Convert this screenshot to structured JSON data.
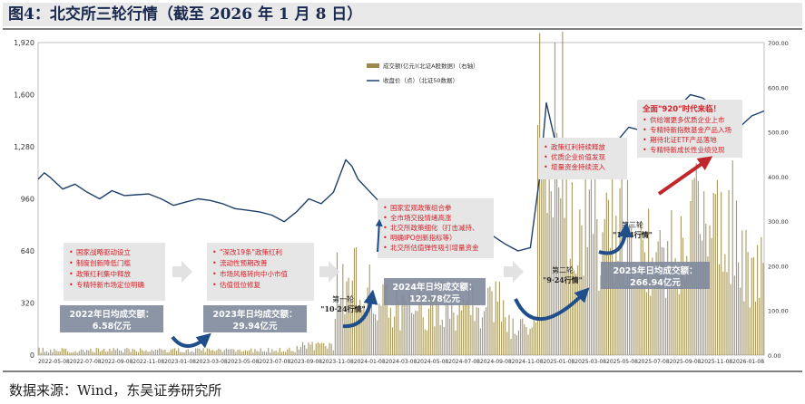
{
  "page": {
    "title": "图4：北交所三轮行情（截至 2026 年 1 月 8 日）",
    "source": "数据来源：Wind，东吴证券研究所"
  },
  "colors": {
    "line": "#1f3f6b",
    "bar": "#9c8a4b",
    "note_bg": "#e6e6e6",
    "note_text": "#d2232a",
    "stat_bg": "#7f8a9c",
    "arrow_blue": "#1f4e8a",
    "arrow_red": "#c0272d"
  },
  "chart_data": {
    "type": "line+bar",
    "legend": [
      "成交额(亿元)(北证A股数据)（右轴）",
      "收盘价（点）（北证50数据）"
    ],
    "legend_position": "top-center",
    "y_left": {
      "min": 0,
      "max": 1920,
      "ticks": [
        "0",
        "320",
        "640",
        "960",
        "1,280",
        "1,600",
        "1,920"
      ]
    },
    "y_right": {
      "min": 0,
      "max": 700,
      "ticks": [
        "0.00",
        "100.00",
        "200.00",
        "300.00",
        "400.00",
        "500.00",
        "600.00",
        "700.00"
      ]
    },
    "x_ticks": [
      "2022-05-08",
      "2022-07-08",
      "2022-09-08",
      "2022-11-08",
      "2023-01-08",
      "2023-03-08",
      "2023-05-08",
      "2023-07-08",
      "2023-09-08",
      "2023-11-08",
      "2024-01-08",
      "2024-03-08",
      "2024-05-08",
      "2024-07-08",
      "2024-09-08",
      "2024-11-08",
      "2025-01-08",
      "2025-03-08",
      "2025-05-08",
      "2025-07-08",
      "2025-09-08",
      "2025-11-08",
      "2026-01-08"
    ],
    "close_price_series": {
      "name": "收盘价（点）（北证50数据）",
      "points": [
        [
          0,
          1080
        ],
        [
          0.5,
          1120
        ],
        [
          1,
          1090
        ],
        [
          2,
          1020
        ],
        [
          3,
          1050
        ],
        [
          4,
          1000
        ],
        [
          5,
          960
        ],
        [
          6,
          1010
        ],
        [
          7,
          980
        ],
        [
          8,
          985
        ],
        [
          9,
          990
        ],
        [
          10,
          960
        ],
        [
          11,
          920
        ],
        [
          12,
          940
        ],
        [
          13,
          960
        ],
        [
          14,
          950
        ],
        [
          15,
          930
        ],
        [
          16,
          900
        ],
        [
          17,
          890
        ],
        [
          18,
          880
        ],
        [
          19,
          860
        ],
        [
          20,
          820
        ],
        [
          21,
          880
        ],
        [
          22,
          960
        ],
        [
          23,
          930
        ],
        [
          24,
          1000
        ],
        [
          25,
          1200
        ],
        [
          25.5,
          1160
        ],
        [
          26,
          1080
        ],
        [
          27,
          1000
        ],
        [
          28,
          920
        ],
        [
          29,
          840
        ],
        [
          30,
          790
        ],
        [
          31,
          840
        ],
        [
          32,
          820
        ],
        [
          33,
          780
        ],
        [
          34,
          740
        ],
        [
          35,
          700
        ],
        [
          36,
          710
        ],
        [
          37,
          730
        ],
        [
          38,
          680
        ],
        [
          39,
          640
        ],
        [
          40,
          660
        ],
        [
          40.8,
          1120
        ],
        [
          41.3,
          1550
        ],
        [
          42,
          1320
        ],
        [
          43,
          1300
        ],
        [
          44,
          1200
        ],
        [
          45,
          1230
        ],
        [
          46,
          1180
        ],
        [
          47,
          1310
        ],
        [
          48,
          1400
        ],
        [
          49,
          1380
        ],
        [
          50,
          1490
        ],
        [
          51,
          1560
        ],
        [
          52,
          1520
        ],
        [
          53,
          1600
        ],
        [
          54,
          1580
        ],
        [
          55,
          1520
        ],
        [
          56,
          1470
        ],
        [
          57,
          1400
        ],
        [
          58,
          1470
        ],
        [
          59,
          1500
        ]
      ]
    },
    "turnover_series": {
      "name": "成交额(亿元)(北证A股数据)（右轴）",
      "segments": [
        {
          "from": 0,
          "to": 21,
          "level": 12
        },
        {
          "from": 21,
          "to": 24,
          "level": 22
        },
        {
          "from": 24,
          "to": 27,
          "level": 175
        },
        {
          "from": 27,
          "to": 38,
          "level": 118
        },
        {
          "from": 38,
          "to": 40.5,
          "level": 70
        },
        {
          "from": 40.5,
          "to": 43,
          "level": 520
        },
        {
          "from": 43,
          "to": 48,
          "level": 310
        },
        {
          "from": 48,
          "to": 53,
          "level": 240
        },
        {
          "from": 53,
          "to": 57,
          "level": 320
        },
        {
          "from": 57,
          "to": 59,
          "level": 215
        }
      ]
    },
    "annotations": [
      {
        "type": "note",
        "lines": [
          "国家战略驱动设立",
          "制度创新降低门槛",
          "政策红利集中释放",
          "专精特新市场定位明确"
        ]
      },
      {
        "type": "note",
        "lines": [
          "\"深改19条\"政策红利",
          "流动性预期改善",
          "市场风格转向中小市值",
          "估值低位修复"
        ]
      },
      {
        "type": "note",
        "lines": [
          "国家宏观政策组合拳",
          "全市场交投情绪高涨",
          "北交所政策细化（打击减持、",
          "明确IPO创新指标等）",
          "北交所估值弹性吸引增量资金"
        ]
      },
      {
        "type": "note",
        "lines": [
          "政策红利持续释放",
          "优质企业价值发现",
          "增量资金持续流入"
        ]
      },
      {
        "type": "note",
        "title": "全面\"920\"时代来临！",
        "lines": [
          "供给端更多优质企业上市",
          "专精特新指数基金产品入场",
          "期待北证ETF产品落地",
          "专精特新成长性业绩兑现"
        ]
      },
      {
        "type": "stat",
        "lines": [
          "2022年日均成交额：",
          "6.58亿元"
        ]
      },
      {
        "type": "stat",
        "lines": [
          "2023年日均成交额：",
          "29.94亿元"
        ]
      },
      {
        "type": "stat",
        "lines": [
          "2024年日均成交额：",
          "122.78亿元"
        ]
      },
      {
        "type": "stat",
        "lines": [
          "2025年日均成交额：",
          "266.94亿元"
        ]
      },
      {
        "type": "label",
        "lines": [
          "第一轮",
          "\"10·24行情\""
        ]
      },
      {
        "type": "label",
        "lines": [
          "第二轮",
          "\"9·24行情\""
        ]
      },
      {
        "type": "label",
        "lines": [
          "第三轮",
          "\"1·14行情\""
        ]
      }
    ]
  }
}
